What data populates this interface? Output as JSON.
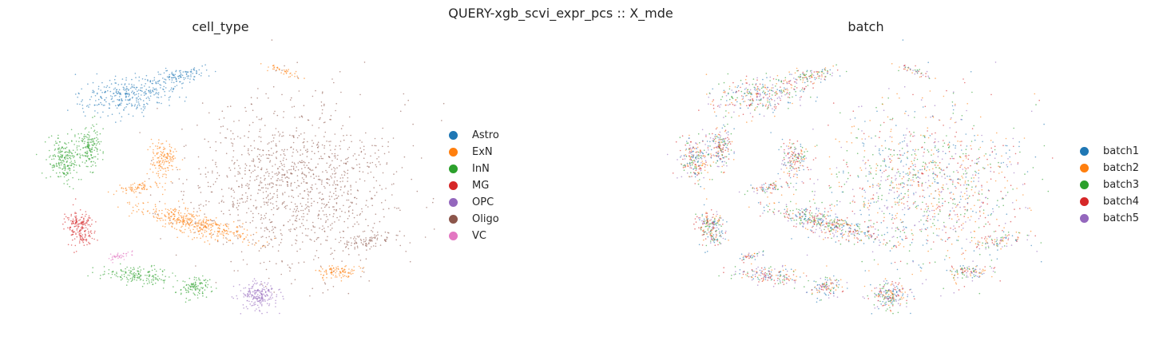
{
  "figure": {
    "suptitle": "QUERY-xgb_scvi_expr_pcs :: X_mde"
  },
  "chart_data": [
    {
      "type": "scatter",
      "title": "cell_type",
      "xlabel": "",
      "ylabel": "",
      "grid": false,
      "legend_placement": "right",
      "categories": [
        {
          "name": "Astro",
          "color": "#1f77b4"
        },
        {
          "name": "ExN",
          "color": "#ff7f0e"
        },
        {
          "name": "InN",
          "color": "#2ca02c"
        },
        {
          "name": "MG",
          "color": "#d62728"
        },
        {
          "name": "OPC",
          "color": "#9467bd"
        },
        {
          "name": "Oligo",
          "color": "#8c564b"
        },
        {
          "name": "VC",
          "color": "#e377c2"
        }
      ],
      "clusters": [
        {
          "category": "Oligo",
          "x": 0.0,
          "y": 0.0,
          "sx": 1.0,
          "sy": 1.0,
          "rot": -0.15,
          "weight": 1200
        },
        {
          "category": "Oligo",
          "x": 0.68,
          "y": -0.72,
          "sx": 0.25,
          "sy": 0.1,
          "rot": 0.2,
          "weight": 80
        },
        {
          "category": "Astro",
          "x": -1.6,
          "y": 1.1,
          "sx": 0.45,
          "sy": 0.22,
          "rot": 0.1,
          "weight": 320
        },
        {
          "category": "Astro",
          "x": -1.1,
          "y": 1.35,
          "sx": 0.3,
          "sy": 0.1,
          "rot": 0.3,
          "weight": 120
        },
        {
          "category": "InN",
          "x": -2.2,
          "y": 0.3,
          "sx": 0.16,
          "sy": 0.28,
          "rot": 0.0,
          "weight": 220
        },
        {
          "category": "InN",
          "x": -1.95,
          "y": 0.45,
          "sx": 0.12,
          "sy": 0.25,
          "rot": 0.0,
          "weight": 160
        },
        {
          "category": "InN",
          "x": -1.5,
          "y": -1.15,
          "sx": 0.3,
          "sy": 0.12,
          "rot": -0.1,
          "weight": 160
        },
        {
          "category": "InN",
          "x": -0.95,
          "y": -1.3,
          "sx": 0.15,
          "sy": 0.12,
          "rot": 0.0,
          "weight": 110
        },
        {
          "category": "ExN",
          "x": -1.25,
          "y": 0.3,
          "sx": 0.12,
          "sy": 0.22,
          "rot": 0.0,
          "weight": 150
        },
        {
          "category": "ExN",
          "x": -0.95,
          "y": -0.5,
          "sx": 0.55,
          "sy": 0.14,
          "rot": -0.35,
          "weight": 420
        },
        {
          "category": "ExN",
          "x": 0.4,
          "y": -1.1,
          "sx": 0.2,
          "sy": 0.08,
          "rot": 0.0,
          "weight": 100
        },
        {
          "category": "ExN",
          "x": -1.5,
          "y": -0.05,
          "sx": 0.18,
          "sy": 0.05,
          "rot": 0.2,
          "weight": 70
        },
        {
          "category": "ExN",
          "x": -0.1,
          "y": 1.4,
          "sx": 0.2,
          "sy": 0.04,
          "rot": -0.4,
          "weight": 40
        },
        {
          "category": "MG",
          "x": -2.05,
          "y": -0.55,
          "sx": 0.13,
          "sy": 0.22,
          "rot": 0.2,
          "weight": 200
        },
        {
          "category": "OPC",
          "x": -0.35,
          "y": -1.4,
          "sx": 0.17,
          "sy": 0.18,
          "rot": 0.0,
          "weight": 200
        },
        {
          "category": "VC",
          "x": -1.65,
          "y": -0.9,
          "sx": 0.12,
          "sy": 0.04,
          "rot": 0.3,
          "weight": 40
        }
      ]
    },
    {
      "type": "scatter",
      "title": "batch",
      "xlabel": "",
      "ylabel": "",
      "grid": false,
      "legend_placement": "right",
      "categories": [
        {
          "name": "batch1",
          "color": "#1f77b4"
        },
        {
          "name": "batch2",
          "color": "#ff7f0e"
        },
        {
          "name": "batch3",
          "color": "#2ca02c"
        },
        {
          "name": "batch4",
          "color": "#d62728"
        },
        {
          "name": "batch5",
          "color": "#9467bd"
        }
      ],
      "clusters_note": "same embedding as cell_type panel, mixed batch colors"
    }
  ]
}
